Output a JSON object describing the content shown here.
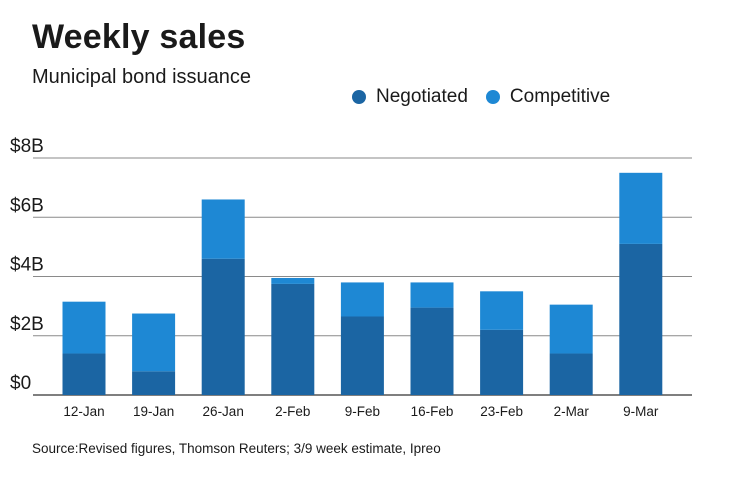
{
  "chart_data": {
    "type": "bar",
    "stacked": true,
    "title": "Weekly sales",
    "subtitle": "Municipal bond issuance",
    "categories": [
      "12-Jan",
      "19-Jan",
      "26-Jan",
      "2-Feb",
      "9-Feb",
      "16-Feb",
      "23-Feb",
      "2-Mar",
      "9-Mar"
    ],
    "series": [
      {
        "name": "Negotiated",
        "color": "#1b65a3",
        "values": [
          1.4,
          0.8,
          4.6,
          3.75,
          2.65,
          2.95,
          2.2,
          1.4,
          5.1
        ]
      },
      {
        "name": "Competitive",
        "color": "#1e88d4",
        "values": [
          1.75,
          1.95,
          2.0,
          0.2,
          1.15,
          0.85,
          1.3,
          1.65,
          2.4
        ]
      }
    ],
    "ylim": [
      0,
      8
    ],
    "yticks": [
      0,
      2,
      4,
      6,
      8
    ],
    "ytick_labels": [
      "$0",
      "$2B",
      "$4B",
      "$6B",
      "$8B"
    ],
    "xlabel": "",
    "ylabel": "",
    "grid": true,
    "legend_position": "top-right",
    "source": "Source:Revised figures, Thomson Reuters; 3/9 week estimate, Ipreo"
  }
}
